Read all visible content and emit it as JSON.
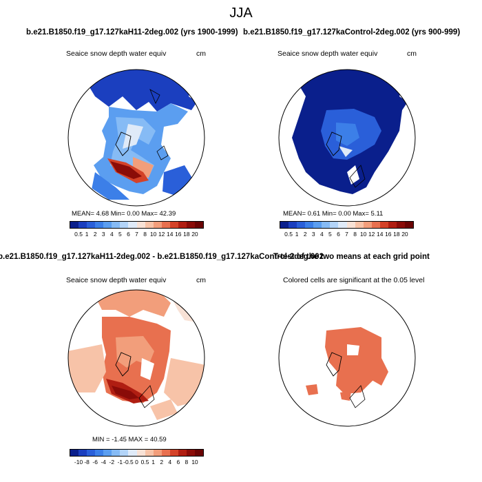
{
  "title": "JJA",
  "panels": {
    "top_left": {
      "header": "b.e21.B1850.f19_g17.127kaH11-2deg.002 (yrs 1900-1999)",
      "variable": "Seaice snow depth water equiv",
      "unit": "cm",
      "stats": "MEAN=   4.68  Min=   0.00  Max=  42.39"
    },
    "top_right": {
      "header": "b.e21.B1850.f19_g17.127kaControl-2deg.002 (yrs 900-999)",
      "variable": "Seaice snow depth water equiv",
      "unit": "cm",
      "stats": "MEAN=   0.61  Min=   0.00  Max=   5.11"
    },
    "bottom_left": {
      "header": "b.e21.B1850.f19_g17.127kaH11-2deg.002 - b.e21.B1850.f19_g17.127kaControl-2deg.002",
      "variable": "Seaice snow depth water equiv",
      "unit": "cm",
      "stats": "MIN = -1.45 MAX = 40.59"
    },
    "bottom_right": {
      "header": "T-test of the two means at each grid point",
      "variable": "Colored cells are significant at the 0.05 level"
    }
  },
  "colorbar_top": {
    "labels": [
      "0.5",
      "1",
      "2",
      "3",
      "4",
      "5",
      "6",
      "7",
      "8",
      "10",
      "12",
      "14",
      "16",
      "18",
      "20"
    ],
    "colors": [
      "#0a1f8c",
      "#1b3fbf",
      "#2a5fd9",
      "#3c7fe8",
      "#5b9ef0",
      "#86bbf5",
      "#b3d4f8",
      "#dfeaf8",
      "#f8e2d6",
      "#f7c3a8",
      "#f29e7b",
      "#e8704f",
      "#d44228",
      "#b01e12",
      "#8a0c08",
      "#6a0404"
    ]
  },
  "colorbar_bottom": {
    "labels": [
      "-10",
      "-8",
      "-6",
      "-4",
      "-2",
      "-1",
      "-0.5",
      "0",
      "0.5",
      "1",
      "2",
      "4",
      "6",
      "8",
      "10"
    ],
    "colors": [
      "#0a1f8c",
      "#1b3fbf",
      "#2a5fd9",
      "#3c7fe8",
      "#5b9ef0",
      "#86bbf5",
      "#b3d4f8",
      "#dfeaf8",
      "#f8e2d6",
      "#f7c3a8",
      "#f29e7b",
      "#e8704f",
      "#d44228",
      "#b01e12",
      "#8a0c08",
      "#6a0404"
    ]
  }
}
